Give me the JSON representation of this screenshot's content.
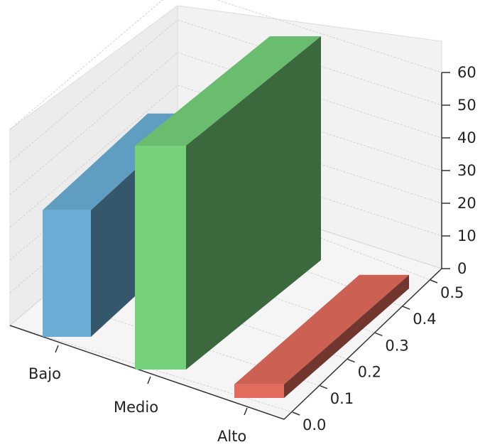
{
  "chart_data": {
    "type": "bar",
    "projection": "3d",
    "title": "",
    "xlabel": "",
    "ylabel": "",
    "zlabel": "",
    "categories": [
      "Bajo",
      "Medio",
      "Alto"
    ],
    "values": [
      33,
      60,
      6
    ],
    "colors": [
      "#6aaed6",
      "#76d27a",
      "#e16b5c"
    ],
    "zlim": [
      0,
      60
    ],
    "z_ticks": [
      "0",
      "10",
      "20",
      "30",
      "40",
      "50",
      "60"
    ],
    "depth_ticks": [
      "0.0",
      "0.1",
      "0.2",
      "0.3",
      "0.4",
      "0.5"
    ],
    "grid": true
  }
}
